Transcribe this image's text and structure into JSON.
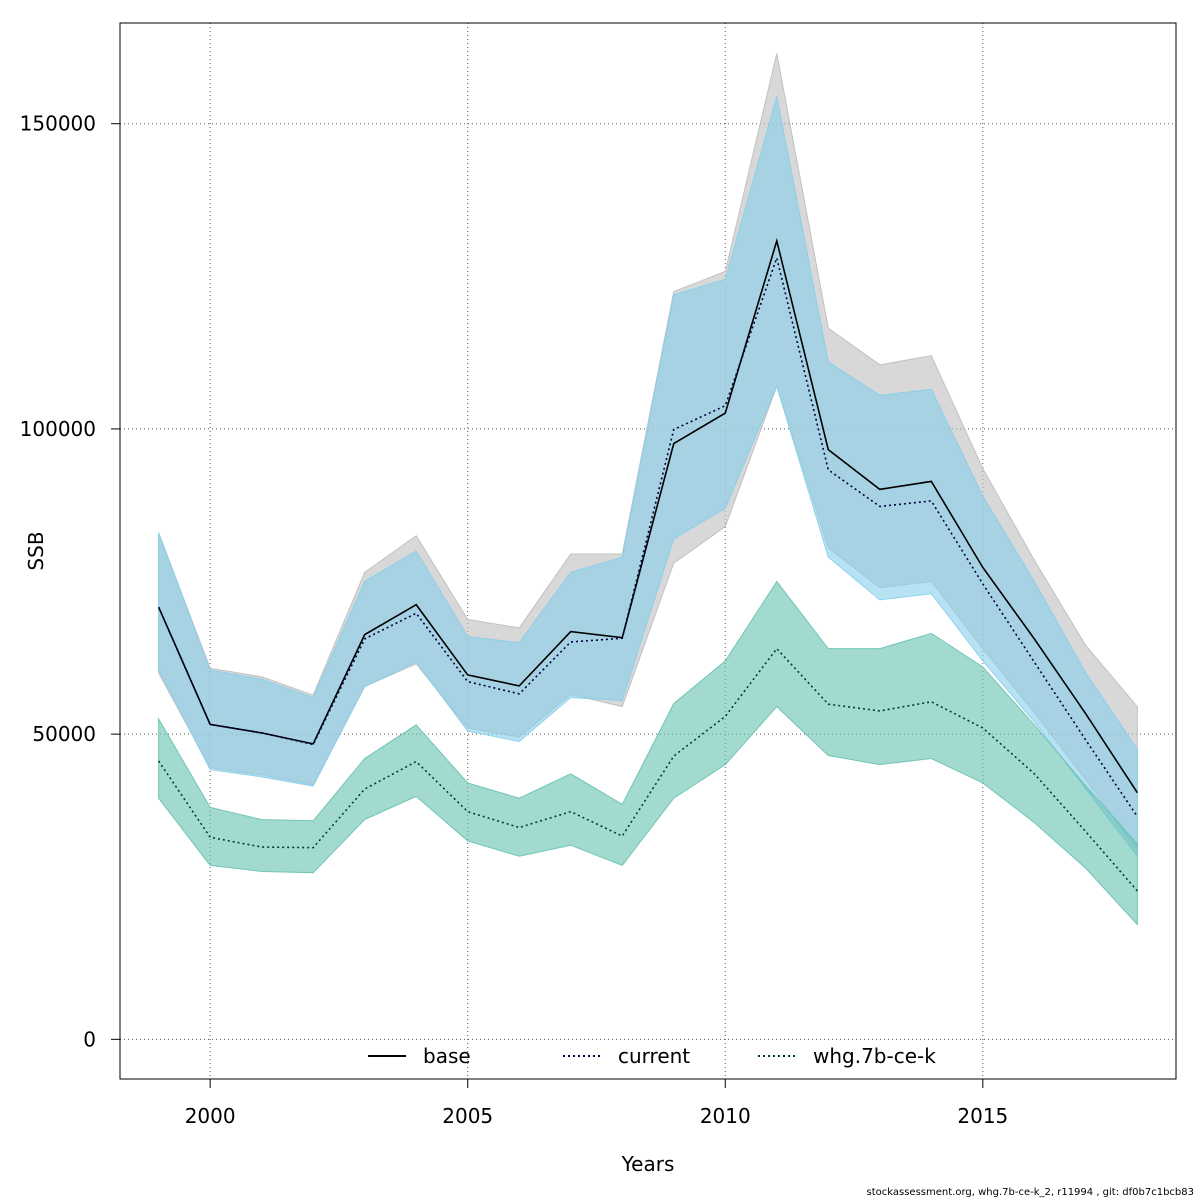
{
  "chart_data": {
    "type": "area",
    "title": "",
    "xlabel": "Years",
    "ylabel": "SSB",
    "xlim": [
      1998.25,
      2018.75
    ],
    "ylim": [
      -6500,
      166500
    ],
    "x_ticks": [
      2000,
      2005,
      2010,
      2015
    ],
    "y_ticks": [
      0,
      50000,
      100000,
      150000
    ],
    "grid": true,
    "legend_position": "bottom",
    "x": [
      1999,
      2000,
      2001,
      2002,
      2003,
      2004,
      2005,
      2006,
      2007,
      2008,
      2009,
      2010,
      2011,
      2012,
      2013,
      2014,
      2015,
      2016,
      2017,
      2018
    ],
    "series": [
      {
        "name": "base",
        "line_style": "solid",
        "line_color": "#000000",
        "band_color": "#bebebe",
        "values": [
          70800,
          51600,
          50200,
          48400,
          66300,
          71200,
          59700,
          57900,
          66800,
          65800,
          97600,
          102600,
          130800,
          96600,
          90100,
          91400,
          77300,
          65600,
          53300,
          40400
        ],
        "lower": [
          60000,
          44500,
          43300,
          41700,
          57800,
          61500,
          51000,
          49500,
          56500,
          54500,
          78000,
          84000,
          107000,
          80500,
          74000,
          75000,
          64000,
          53500,
          42500,
          31000
        ],
        "upper": [
          83000,
          60800,
          59400,
          56400,
          76500,
          82500,
          68800,
          67400,
          79500,
          79500,
          122500,
          125800,
          161500,
          116500,
          110500,
          112000,
          93500,
          78500,
          64500,
          54500
        ]
      },
      {
        "name": "current",
        "line_style": "dotted",
        "line_color": "#00003f",
        "band_color": "#87ceeb",
        "values": [
          70800,
          51600,
          50200,
          48300,
          65600,
          69800,
          58600,
          56600,
          65100,
          65700,
          99900,
          103800,
          128000,
          93300,
          87300,
          88200,
          74600,
          61800,
          49000,
          36500
        ],
        "lower": [
          60500,
          44200,
          43000,
          41500,
          57800,
          61800,
          50500,
          48800,
          56000,
          55500,
          82000,
          87000,
          107000,
          79000,
          72000,
          73000,
          62000,
          52000,
          41000,
          30000
        ],
        "upper": [
          83000,
          60500,
          59000,
          56000,
          75000,
          80000,
          66000,
          65000,
          76500,
          79000,
          122000,
          124500,
          154500,
          111000,
          105500,
          106500,
          89000,
          75000,
          60000,
          47500
        ]
      },
      {
        "name": "whg.7b-ce-k",
        "line_style": "dotted",
        "line_color": "#003c36",
        "band_color": "#66c2b0",
        "values": [
          45600,
          33100,
          31500,
          31400,
          41000,
          45500,
          37300,
          34700,
          37300,
          33300,
          46400,
          52900,
          64000,
          54900,
          53800,
          55300,
          51000,
          43500,
          34000,
          24300
        ],
        "lower": [
          39500,
          28500,
          27500,
          27300,
          36000,
          39800,
          32500,
          30000,
          31800,
          28500,
          39500,
          45000,
          54500,
          46500,
          45000,
          46000,
          42000,
          35500,
          28000,
          18800
        ],
        "upper": [
          52500,
          38000,
          36000,
          35800,
          46000,
          51500,
          42000,
          39500,
          43500,
          38500,
          55000,
          62000,
          75000,
          64000,
          64000,
          66500,
          61000,
          51500,
          41500,
          32000
        ]
      }
    ]
  },
  "credit": "stockassessment.org, whg.7b-ce-k_2, r11994 , git: df0b7c1bcb83"
}
